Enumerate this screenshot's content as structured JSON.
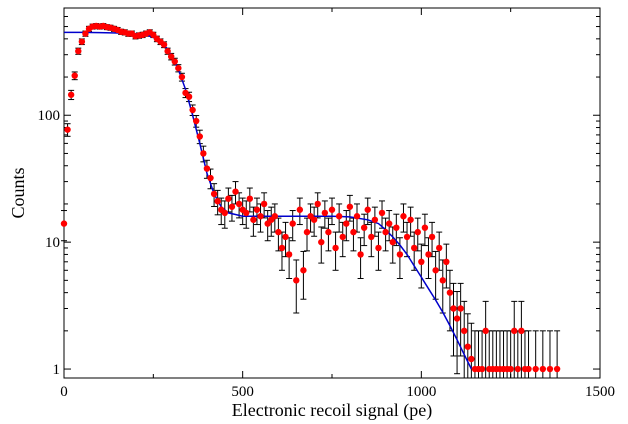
{
  "chart_data": {
    "type": "scatter",
    "title": "",
    "xlabel": "Electronic recoil signal (pe)",
    "ylabel": "Counts",
    "xlim": [
      0,
      1500
    ],
    "ylim": [
      0.85,
      700
    ],
    "yscale": "log",
    "grid": false,
    "legend": "none",
    "x_ticks": [
      {
        "value": 0,
        "label": "0"
      },
      {
        "value": 500,
        "label": "500"
      },
      {
        "value": 1000,
        "label": "1000"
      },
      {
        "value": 1500,
        "label": "1500"
      }
    ],
    "y_ticks": [
      {
        "value": 1,
        "label": "1"
      },
      {
        "value": 10,
        "label": "10"
      },
      {
        "value": 100,
        "label": "100"
      }
    ],
    "series": [
      {
        "kind": "points",
        "color": "#ff0000",
        "points": [
          [
            0,
            14
          ],
          [
            10,
            77
          ],
          [
            20,
            145
          ],
          [
            30,
            205
          ],
          [
            40,
            320
          ],
          [
            50,
            380
          ],
          [
            60,
            440
          ],
          [
            70,
            480
          ],
          [
            80,
            500
          ],
          [
            90,
            505
          ],
          [
            100,
            500
          ],
          [
            110,
            505
          ],
          [
            120,
            495
          ],
          [
            130,
            490
          ],
          [
            140,
            480
          ],
          [
            150,
            470
          ],
          [
            160,
            455
          ],
          [
            170,
            450
          ],
          [
            180,
            440
          ],
          [
            190,
            440
          ],
          [
            200,
            420
          ],
          [
            210,
            425
          ],
          [
            220,
            430
          ],
          [
            230,
            440
          ],
          [
            240,
            450
          ],
          [
            250,
            430
          ],
          [
            260,
            400
          ],
          [
            270,
            380
          ],
          [
            280,
            360
          ],
          [
            290,
            320
          ],
          [
            300,
            290
          ],
          [
            310,
            265
          ],
          [
            320,
            235
          ],
          [
            330,
            200
          ],
          [
            340,
            150
          ],
          [
            350,
            140
          ],
          [
            360,
            110
          ],
          [
            370,
            90
          ],
          [
            380,
            68
          ],
          [
            390,
            50
          ],
          [
            400,
            38
          ],
          [
            410,
            32
          ],
          [
            420,
            24
          ],
          [
            430,
            21
          ],
          [
            440,
            18
          ],
          [
            450,
            17
          ],
          [
            460,
            22
          ],
          [
            470,
            19
          ],
          [
            480,
            25
          ],
          [
            490,
            20
          ],
          [
            500,
            18
          ],
          [
            510,
            17
          ],
          [
            520,
            22
          ],
          [
            530,
            15
          ],
          [
            540,
            18
          ],
          [
            550,
            16
          ],
          [
            560,
            20
          ],
          [
            570,
            14
          ],
          [
            580,
            15
          ],
          [
            590,
            16
          ],
          [
            600,
            12
          ],
          [
            610,
            9
          ],
          [
            620,
            11
          ],
          [
            630,
            8
          ],
          [
            640,
            14
          ],
          [
            650,
            5
          ],
          [
            660,
            18
          ],
          [
            670,
            6
          ],
          [
            680,
            12
          ],
          [
            690,
            16
          ],
          [
            700,
            15
          ],
          [
            710,
            20
          ],
          [
            720,
            10
          ],
          [
            730,
            17
          ],
          [
            740,
            12
          ],
          [
            750,
            18
          ],
          [
            760,
            9
          ],
          [
            770,
            16
          ],
          [
            780,
            11
          ],
          [
            790,
            14
          ],
          [
            800,
            19
          ],
          [
            810,
            12
          ],
          [
            820,
            16
          ],
          [
            830,
            8
          ],
          [
            840,
            13
          ],
          [
            850,
            18
          ],
          [
            860,
            11
          ],
          [
            870,
            15
          ],
          [
            880,
            9
          ],
          [
            890,
            17
          ],
          [
            900,
            12
          ],
          [
            910,
            14
          ],
          [
            920,
            10
          ],
          [
            930,
            13
          ],
          [
            940,
            8
          ],
          [
            950,
            16
          ],
          [
            960,
            11
          ],
          [
            970,
            15
          ],
          [
            980,
            9
          ],
          [
            990,
            12
          ],
          [
            1000,
            7
          ],
          [
            1010,
            13
          ],
          [
            1020,
            8
          ],
          [
            1030,
            11
          ],
          [
            1040,
            6
          ],
          [
            1050,
            9
          ],
          [
            1060,
            5
          ],
          [
            1070,
            7
          ],
          [
            1080,
            4
          ],
          [
            1090,
            3
          ],
          [
            1100,
            2.5
          ],
          [
            1110,
            3
          ],
          [
            1120,
            2
          ],
          [
            1130,
            1.5
          ],
          [
            1140,
            1.2
          ],
          [
            1150,
            1
          ],
          [
            1160,
            1
          ],
          [
            1170,
            1
          ],
          [
            1180,
            2
          ],
          [
            1190,
            1
          ],
          [
            1200,
            1
          ],
          [
            1210,
            1
          ],
          [
            1220,
            1
          ],
          [
            1230,
            1
          ],
          [
            1240,
            1
          ],
          [
            1250,
            1
          ],
          [
            1260,
            2
          ],
          [
            1270,
            1
          ],
          [
            1280,
            2
          ],
          [
            1290,
            1
          ],
          [
            1300,
            1
          ],
          [
            1320,
            1
          ],
          [
            1340,
            1
          ],
          [
            1360,
            1
          ],
          [
            1380,
            1
          ]
        ]
      },
      {
        "kind": "fit-line",
        "color": "#0000cc",
        "points": [
          [
            0,
            450
          ],
          [
            50,
            450
          ],
          [
            100,
            448
          ],
          [
            150,
            445
          ],
          [
            200,
            440
          ],
          [
            230,
            430
          ],
          [
            260,
            400
          ],
          [
            280,
            360
          ],
          [
            300,
            300
          ],
          [
            320,
            230
          ],
          [
            340,
            160
          ],
          [
            360,
            100
          ],
          [
            380,
            60
          ],
          [
            400,
            35
          ],
          [
            420,
            24
          ],
          [
            440,
            19
          ],
          [
            460,
            17
          ],
          [
            480,
            16.5
          ],
          [
            500,
            16
          ],
          [
            550,
            16
          ],
          [
            600,
            16
          ],
          [
            650,
            16
          ],
          [
            700,
            16
          ],
          [
            750,
            16
          ],
          [
            800,
            15.8
          ],
          [
            850,
            15
          ],
          [
            880,
            14
          ],
          [
            900,
            12.5
          ],
          [
            920,
            11
          ],
          [
            940,
            9.5
          ],
          [
            960,
            8
          ],
          [
            980,
            6.5
          ],
          [
            1000,
            5.3
          ],
          [
            1020,
            4.3
          ],
          [
            1040,
            3.5
          ],
          [
            1060,
            2.8
          ],
          [
            1080,
            2.2
          ],
          [
            1100,
            1.7
          ],
          [
            1120,
            1.3
          ],
          [
            1140,
            1
          ]
        ]
      }
    ]
  }
}
